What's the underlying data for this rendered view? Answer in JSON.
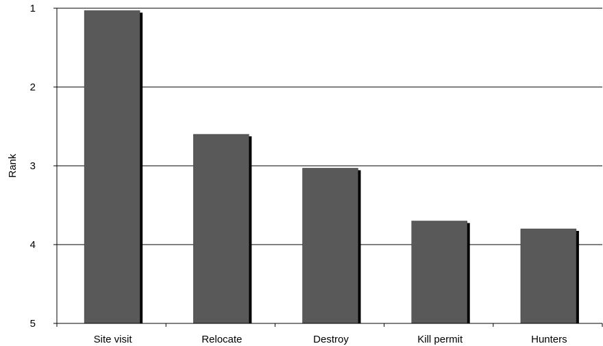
{
  "chart_data": {
    "type": "bar",
    "title": "",
    "xlabel": "",
    "ylabel": "Rank",
    "categories": [
      "Site visit",
      "Relocate",
      "Destroy",
      "Kill permit",
      "Hunters"
    ],
    "values": [
      1.03,
      2.6,
      3.03,
      3.7,
      3.8
    ],
    "ylim": [
      1,
      5
    ],
    "y_ticks": [
      1,
      2,
      3,
      4,
      5
    ],
    "y_ticks_labels": [
      "1",
      "2",
      "3",
      "4",
      "5"
    ],
    "y_axis_inverted": true,
    "grid": true,
    "legend": "none",
    "colors": {
      "bar_fill": "#595959",
      "bar_shadow": "#000000",
      "axis": "#000000",
      "grid": "#000000"
    }
  }
}
